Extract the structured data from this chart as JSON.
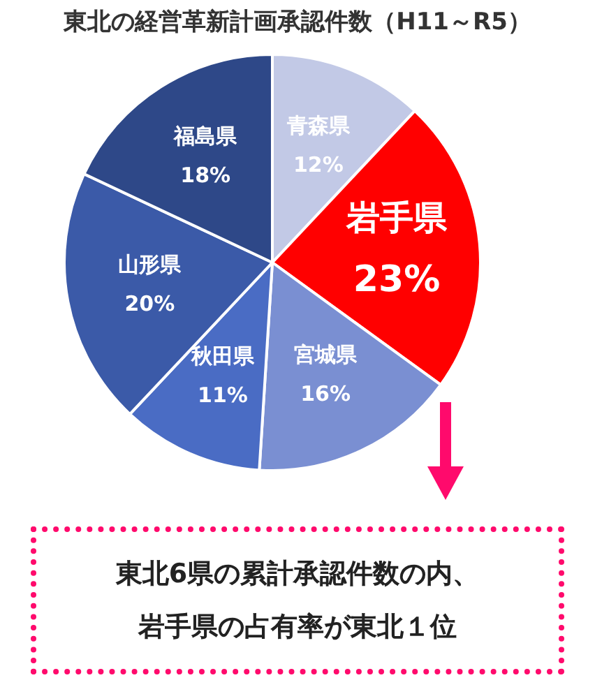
{
  "chart_data": {
    "type": "pie",
    "title": "東北の経営革新計画承認件数（H11～R5）",
    "categories": [
      "青森県",
      "岩手県",
      "宮城県",
      "秋田県",
      "山形県",
      "福島県"
    ],
    "values": [
      12,
      23,
      16,
      11,
      20,
      18
    ],
    "value_labels": [
      "12%",
      "23%",
      "16%",
      "11%",
      "20%",
      "18%"
    ],
    "colors": [
      "#c2c9e6",
      "#ff0000",
      "#7a8fd2",
      "#4a6cc4",
      "#3b5aa8",
      "#2e4888"
    ],
    "legend": false,
    "annotations": [
      "東北6県の累計承認件数の内、",
      "岩手県の占有率が東北１位"
    ]
  }
}
